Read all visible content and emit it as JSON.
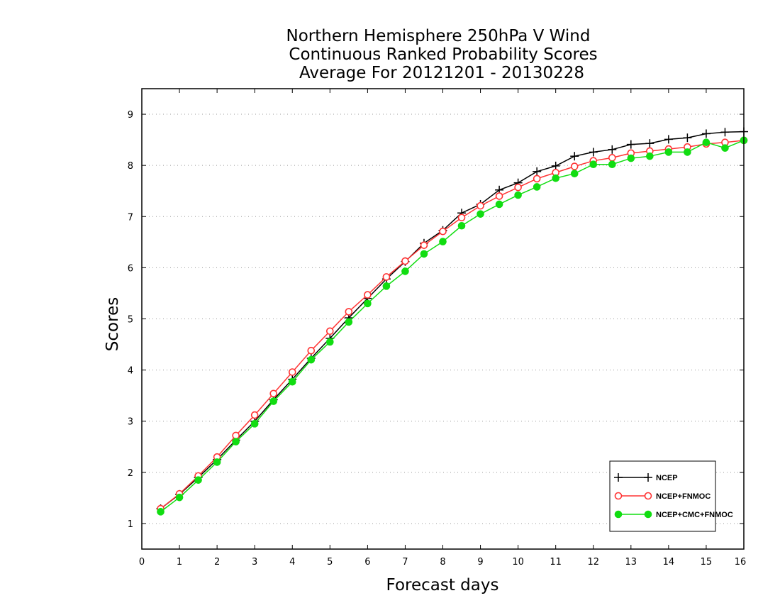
{
  "chart_data": {
    "type": "line",
    "title": [
      "Northern Hemisphere 250hPa V Wind",
      "Continuous Ranked Probability Scores",
      "Average For 20121201 - 20130228"
    ],
    "xlabel": "Forecast days",
    "ylabel": "Scores",
    "xlim": [
      0,
      16
    ],
    "ylim": [
      0.5,
      9.5
    ],
    "xticks": [
      0,
      1,
      2,
      3,
      4,
      5,
      6,
      7,
      8,
      9,
      10,
      11,
      12,
      13,
      14,
      15,
      16
    ],
    "yticks": [
      1,
      2,
      3,
      4,
      5,
      6,
      7,
      8,
      9
    ],
    "grid": "horizontal dotted",
    "legend_position": "bottom-right",
    "x": [
      0.5,
      1,
      1.5,
      2,
      2.5,
      3,
      3.5,
      4,
      4.5,
      5,
      5.5,
      6,
      6.5,
      7,
      7.5,
      8,
      8.5,
      9,
      9.5,
      10,
      10.5,
      11,
      11.5,
      12,
      12.5,
      13,
      13.5,
      14,
      14.5,
      15,
      15.5,
      16
    ],
    "series": [
      {
        "name": "NCEP",
        "color": "#000000",
        "marker": "plus",
        "values": [
          1.29,
          1.57,
          1.9,
          2.25,
          2.63,
          3.0,
          3.42,
          3.82,
          4.23,
          4.62,
          5.02,
          5.4,
          5.78,
          6.12,
          6.48,
          6.73,
          7.07,
          7.24,
          7.52,
          7.66,
          7.88,
          7.99,
          8.18,
          8.26,
          8.31,
          8.41,
          8.43,
          8.51,
          8.54,
          8.62,
          8.65,
          8.66
        ]
      },
      {
        "name": "NCEP+FNMOC",
        "color": "#ff3333",
        "marker": "open-circle",
        "values": [
          1.29,
          1.58,
          1.93,
          2.3,
          2.72,
          3.12,
          3.54,
          3.96,
          4.38,
          4.76,
          5.14,
          5.47,
          5.82,
          6.13,
          6.44,
          6.71,
          6.98,
          7.21,
          7.4,
          7.57,
          7.74,
          7.86,
          7.98,
          8.09,
          8.15,
          8.24,
          8.28,
          8.32,
          8.36,
          8.42,
          8.45,
          8.49
        ]
      },
      {
        "name": "NCEP+CMC+FNMOC",
        "color": "#11dd11",
        "marker": "filled-circle",
        "values": [
          1.23,
          1.51,
          1.85,
          2.2,
          2.6,
          2.95,
          3.39,
          3.77,
          4.2,
          4.55,
          4.94,
          5.3,
          5.64,
          5.93,
          6.27,
          6.51,
          6.82,
          7.05,
          7.24,
          7.42,
          7.58,
          7.75,
          7.84,
          8.02,
          8.02,
          8.14,
          8.18,
          8.26,
          8.26,
          8.45,
          8.34,
          8.49
        ]
      }
    ]
  }
}
